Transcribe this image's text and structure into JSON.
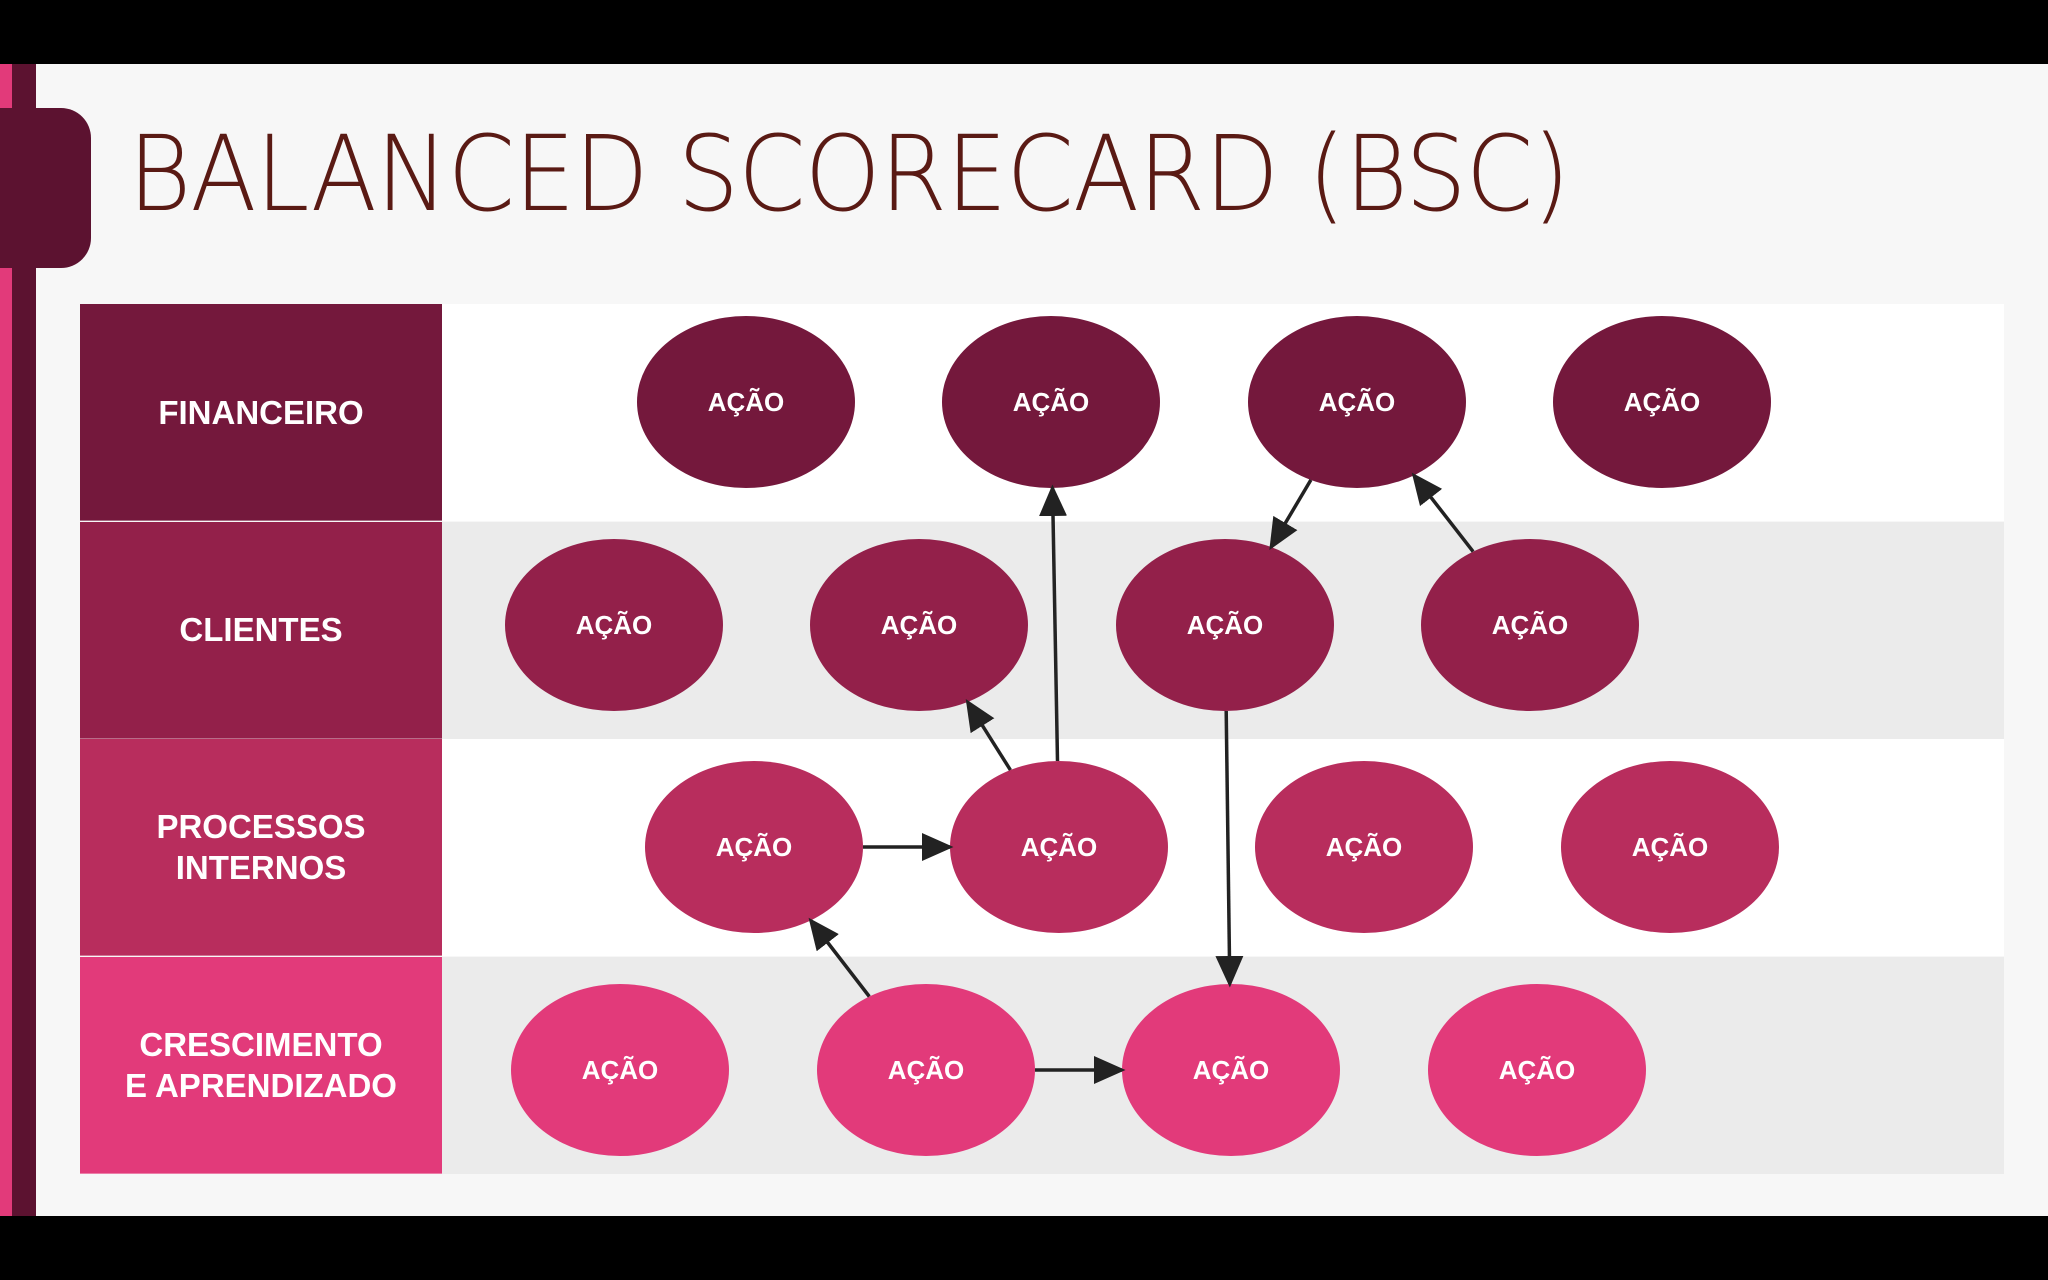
{
  "title": "BALANCED SCORECARD (BSC)",
  "colors": {
    "title_text": "#5a1a14",
    "accent_pink": "#e23a7a",
    "accent_dark": "#5c1230",
    "band_white": "#ffffff",
    "band_grey": "#ebebeb",
    "arrow": "#222222"
  },
  "perspectives": [
    {
      "id": "financeiro",
      "label": "FINANCEIRO",
      "color": "#74183c",
      "band": "#ffffff"
    },
    {
      "id": "clientes",
      "label": "CLIENTES",
      "color": "#93204a",
      "band": "#ebebeb"
    },
    {
      "id": "processos",
      "label": "PROCESSOS\nINTERNOS",
      "color": "#b82d5d",
      "band": "#ffffff"
    },
    {
      "id": "crescimento",
      "label": "CRESCIMENTO\nE APRENDIZADO",
      "color": "#e23a7a",
      "band": "#ebebeb"
    }
  ],
  "nodes": [
    {
      "id": "f1",
      "row": 0,
      "label": "AÇÃO"
    },
    {
      "id": "f2",
      "row": 0,
      "label": "AÇÃO"
    },
    {
      "id": "f3",
      "row": 0,
      "label": "AÇÃO"
    },
    {
      "id": "f4",
      "row": 0,
      "label": "AÇÃO"
    },
    {
      "id": "c1",
      "row": 1,
      "label": "AÇÃO"
    },
    {
      "id": "c2",
      "row": 1,
      "label": "AÇÃO"
    },
    {
      "id": "c3",
      "row": 1,
      "label": "AÇÃO"
    },
    {
      "id": "c4",
      "row": 1,
      "label": "AÇÃO"
    },
    {
      "id": "p1",
      "row": 2,
      "label": "AÇÃO"
    },
    {
      "id": "p2",
      "row": 2,
      "label": "AÇÃO"
    },
    {
      "id": "p3",
      "row": 2,
      "label": "AÇÃO"
    },
    {
      "id": "p4",
      "row": 2,
      "label": "AÇÃO"
    },
    {
      "id": "g1",
      "row": 3,
      "label": "AÇÃO"
    },
    {
      "id": "g2",
      "row": 3,
      "label": "AÇÃO"
    },
    {
      "id": "g3",
      "row": 3,
      "label": "AÇÃO"
    },
    {
      "id": "g4",
      "row": 3,
      "label": "AÇÃO"
    }
  ],
  "edges": [
    {
      "from": "f3",
      "to": "c3"
    },
    {
      "from": "c4",
      "to": "f3"
    },
    {
      "from": "p2",
      "to": "f2"
    },
    {
      "from": "p2",
      "to": "c2"
    },
    {
      "from": "c3",
      "to": "g3"
    },
    {
      "from": "p1",
      "to": "p2"
    },
    {
      "from": "g2",
      "to": "p1"
    },
    {
      "from": "g2",
      "to": "g3"
    }
  ]
}
